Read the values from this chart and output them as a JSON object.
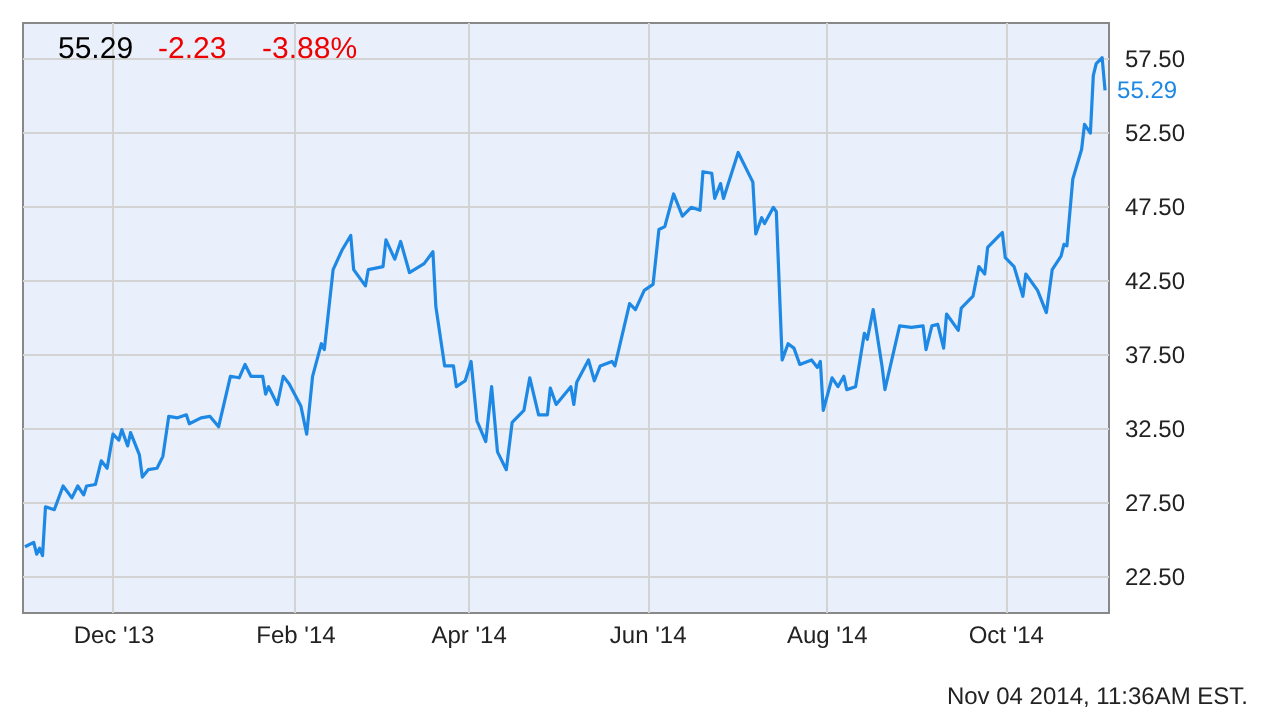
{
  "chart_data": {
    "type": "line",
    "title": "55.29",
    "annotations": [
      "-2.23",
      "-3.88%",
      "Nov 04 2014, 11:36AM EST.",
      {
        "text": "55.29",
        "x": "2014-11-04",
        "y": 55.29
      }
    ],
    "x": [
      "2013-11-01",
      "2013-11-04",
      "2013-11-05",
      "2013-11-06",
      "2013-11-07",
      "2013-11-08",
      "2013-11-11",
      "2013-11-14",
      "2013-11-17",
      "2013-11-19",
      "2013-11-21",
      "2013-11-22",
      "2013-11-25",
      "2013-11-27",
      "2013-11-29",
      "2013-12-01",
      "2013-12-03",
      "2013-12-04",
      "2013-12-06",
      "2013-12-07",
      "2013-12-10",
      "2013-12-11",
      "2013-12-13",
      "2013-12-16",
      "2013-12-18",
      "2013-12-20",
      "2013-12-23",
      "2013-12-26",
      "2013-12-27",
      "2013-12-31",
      "2014-01-03",
      "2014-01-06",
      "2014-01-10",
      "2014-01-13",
      "2014-01-15",
      "2014-01-17",
      "2014-01-21",
      "2014-01-22",
      "2014-01-23",
      "2014-01-26",
      "2014-01-28",
      "2014-01-30",
      "2014-02-03",
      "2014-02-05",
      "2014-02-07",
      "2014-02-10",
      "2014-02-11",
      "2014-02-14",
      "2014-02-17",
      "2014-02-20",
      "2014-02-21",
      "2014-02-25",
      "2014-02-26",
      "2014-03-03",
      "2014-03-04",
      "2014-03-07",
      "2014-03-09",
      "2014-03-12",
      "2014-03-17",
      "2014-03-20",
      "2014-03-21",
      "2014-03-24",
      "2014-03-27",
      "2014-03-28",
      "2014-03-31",
      "2014-04-02",
      "2014-04-04",
      "2014-04-07",
      "2014-04-09",
      "2014-04-11",
      "2014-04-14",
      "2014-04-16",
      "2014-04-20",
      "2014-04-22",
      "2014-04-25",
      "2014-04-28",
      "2014-04-29",
      "2014-05-01",
      "2014-05-06",
      "2014-05-07",
      "2014-05-08",
      "2014-05-12",
      "2014-05-14",
      "2014-05-16",
      "2014-05-20",
      "2014-05-21",
      "2014-05-26",
      "2014-05-28",
      "2014-05-31",
      "2014-06-03",
      "2014-06-05",
      "2014-06-07",
      "2014-06-10",
      "2014-06-13",
      "2014-06-16",
      "2014-06-19",
      "2014-06-20",
      "2014-06-23",
      "2014-06-24",
      "2014-06-26",
      "2014-06-27",
      "2014-07-02",
      "2014-07-07",
      "2014-07-08",
      "2014-07-10",
      "2014-07-11",
      "2014-07-14",
      "2014-07-15",
      "2014-07-17",
      "2014-07-19",
      "2014-07-21",
      "2014-07-23",
      "2014-07-27",
      "2014-07-29",
      "2014-07-30",
      "2014-07-31",
      "2014-08-03",
      "2014-08-05",
      "2014-08-07",
      "2014-08-08",
      "2014-08-11",
      "2014-08-14",
      "2014-08-15",
      "2014-08-17",
      "2014-08-20",
      "2014-08-21",
      "2014-08-26",
      "2014-08-30",
      "2014-09-03",
      "2014-09-04",
      "2014-09-06",
      "2014-09-08",
      "2014-09-10",
      "2014-09-11",
      "2014-09-15",
      "2014-09-16",
      "2014-09-20",
      "2014-09-22",
      "2014-09-24",
      "2014-09-25",
      "2014-09-29",
      "2014-09-30",
      "2014-10-01",
      "2014-10-04",
      "2014-10-07",
      "2014-10-08",
      "2014-10-12",
      "2014-10-15",
      "2014-10-17",
      "2014-10-20",
      "2014-10-21",
      "2014-10-22",
      "2014-10-24",
      "2014-10-27",
      "2014-10-28",
      "2014-10-30",
      "2014-10-31",
      "2014-11-01",
      "2014-11-03",
      "2014-11-04"
    ],
    "series": [
      {
        "color": "#1e88e5",
        "values": [
          24.5,
          24.8,
          24.0,
          24.4,
          23.9,
          27.2,
          27.0,
          28.6,
          27.8,
          28.6,
          28.0,
          28.6,
          28.7,
          30.3,
          29.8,
          32.1,
          31.7,
          32.4,
          31.3,
          32.2,
          30.7,
          29.2,
          29.7,
          29.8,
          30.6,
          33.3,
          33.2,
          33.4,
          32.8,
          33.2,
          33.3,
          32.6,
          36.0,
          35.9,
          36.8,
          36.0,
          36.0,
          34.8,
          35.3,
          34.1,
          36.0,
          35.5,
          34.0,
          32.1,
          36.0,
          38.2,
          37.8,
          43.2,
          44.5,
          45.5,
          43.2,
          42.1,
          43.2,
          43.4,
          45.2,
          43.9,
          45.1,
          43.0,
          43.6,
          44.4,
          40.7,
          36.7,
          36.7,
          35.3,
          35.7,
          37.0,
          33.0,
          31.6,
          35.3,
          30.9,
          29.7,
          32.9,
          33.7,
          35.9,
          33.4,
          33.4,
          35.2,
          34.1,
          35.3,
          34.1,
          35.6,
          37.1,
          35.7,
          36.7,
          37.0,
          36.7,
          40.9,
          40.5,
          41.8,
          42.2,
          45.9,
          46.1,
          48.3,
          46.8,
          47.4,
          47.2,
          49.8,
          49.7,
          48.0,
          49.0,
          48.0,
          51.1,
          49.1,
          45.6,
          46.7,
          46.3,
          47.4,
          47.1,
          37.1,
          38.2,
          37.9,
          36.8,
          37.1,
          36.6,
          37.0,
          33.7,
          35.9,
          35.3,
          36.0,
          35.1,
          35.3,
          38.9,
          38.5,
          40.5,
          36.7,
          35.1,
          39.4,
          39.3,
          39.4,
          37.8,
          39.4,
          39.5,
          37.9,
          40.2,
          39.1,
          40.6,
          41.4,
          43.4,
          42.9,
          44.7,
          45.5,
          45.7,
          44.0,
          43.4,
          41.4,
          42.9,
          41.8,
          40.3,
          43.2,
          44.1,
          44.9,
          44.8,
          49.3,
          51.3,
          53.0,
          52.4,
          56.3,
          57.1,
          57.5,
          55.29
        ]
      }
    ],
    "xlim": [
      "2013-10-31",
      "2014-11-05"
    ],
    "xticks": [
      {
        "value": "2013-12-01",
        "label": "Dec '13"
      },
      {
        "value": "2014-02-01",
        "label": "Feb '14"
      },
      {
        "value": "2014-04-01",
        "label": "Apr '14"
      },
      {
        "value": "2014-06-01",
        "label": "Jun '14"
      },
      {
        "value": "2014-08-01",
        "label": "Aug '14"
      },
      {
        "value": "2014-10-01",
        "label": "Oct '14"
      }
    ],
    "ylim": [
      20.1,
      59.9
    ],
    "yticks": [
      {
        "value": 22.5,
        "label": "22.50"
      },
      {
        "value": 27.5,
        "label": "27.50"
      },
      {
        "value": 32.5,
        "label": "32.50"
      },
      {
        "value": 37.5,
        "label": "37.50"
      },
      {
        "value": 42.5,
        "label": "42.50"
      },
      {
        "value": 47.5,
        "label": "47.50"
      },
      {
        "value": 52.5,
        "label": "52.50"
      },
      {
        "value": 57.5,
        "label": "57.50"
      }
    ],
    "grid": true,
    "marker": "none",
    "line_style": "solid"
  }
}
